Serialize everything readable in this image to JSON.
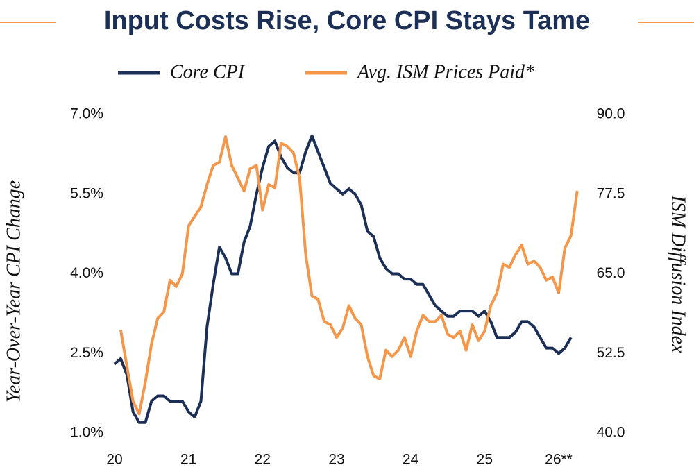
{
  "chart_data": {
    "type": "line",
    "title": "Input Costs Rise, Core CPI Stays Tame",
    "y_label": "Year-Over-Year CPI Change",
    "y2_label": "ISM Diffusion Index",
    "x": [
      20,
      20.083,
      20.167,
      20.25,
      20.333,
      20.417,
      20.5,
      20.583,
      20.667,
      20.75,
      20.833,
      20.917,
      21,
      21.083,
      21.167,
      21.25,
      21.333,
      21.417,
      21.5,
      21.583,
      21.667,
      21.75,
      21.833,
      21.917,
      22,
      22.083,
      22.167,
      22.25,
      22.333,
      22.417,
      22.5,
      22.583,
      22.667,
      22.75,
      22.833,
      22.917,
      23,
      23.083,
      23.167,
      23.25,
      23.333,
      23.417,
      23.5,
      23.583,
      23.667,
      23.75,
      23.833,
      23.917,
      24,
      24.083,
      24.167,
      24.25,
      24.333,
      24.417,
      24.5,
      24.583,
      24.667,
      24.75,
      24.833,
      24.917,
      25,
      25.083,
      25.167,
      25.25,
      25.333,
      25.417,
      25.5,
      25.583,
      25.667,
      25.75,
      25.833,
      25.917,
      26,
      26.083,
      26.167,
      26.25
    ],
    "series": [
      {
        "name": "Core CPI",
        "color": "#1b2f57",
        "axis": "y",
        "values": [
          2.3,
          2.4,
          2.1,
          1.4,
          1.2,
          1.2,
          1.6,
          1.7,
          1.7,
          1.6,
          1.6,
          1.6,
          1.4,
          1.3,
          1.6,
          3.0,
          3.8,
          4.5,
          4.3,
          4.0,
          4.0,
          4.6,
          4.9,
          5.5,
          6.0,
          6.4,
          6.5,
          6.2,
          6.0,
          5.9,
          5.9,
          6.3,
          6.6,
          6.3,
          6.0,
          5.7,
          5.6,
          5.5,
          5.6,
          5.5,
          5.3,
          4.8,
          4.7,
          4.3,
          4.1,
          4.0,
          4.0,
          3.9,
          3.9,
          3.8,
          3.8,
          3.6,
          3.4,
          3.3,
          3.2,
          3.2,
          3.3,
          3.3,
          3.3,
          3.2,
          3.3,
          3.1,
          2.8,
          2.8,
          2.8,
          2.9,
          3.1,
          3.1,
          3.0,
          2.8,
          2.6,
          2.6,
          2.5,
          2.6,
          2.8,
          null
        ]
      },
      {
        "name": "Avg. ISM Prices Paid*",
        "color": "#f4974a",
        "axis": "y2",
        "values": [
          null,
          56.2,
          50.5,
          45,
          43,
          48,
          54,
          58,
          59,
          64,
          63,
          65,
          72.5,
          74,
          75.5,
          79,
          82,
          82.5,
          86.5,
          82,
          80,
          78,
          81.5,
          82,
          75,
          79,
          78.5,
          85.5,
          85,
          84,
          80,
          68,
          61.5,
          61,
          57.5,
          57,
          55,
          56.5,
          60,
          58,
          57,
          52,
          49,
          48.5,
          53,
          52,
          53,
          55,
          52,
          56,
          58.5,
          57.5,
          57.5,
          58.5,
          55.5,
          55,
          56,
          53,
          57,
          54.5,
          56,
          60,
          62,
          66.5,
          66,
          68,
          69.5,
          66.5,
          67,
          66,
          64,
          64.5,
          62,
          69,
          71,
          78
        ]
      }
    ],
    "xlim": [
      20,
      26.3
    ],
    "xticks": [
      20,
      21,
      22,
      23,
      24,
      25,
      {
        "value": 26,
        "label": "26**"
      }
    ],
    "ylim": [
      1,
      7
    ],
    "yticks": [
      {
        "value": 1,
        "label": "1.0%"
      },
      {
        "value": 2.5,
        "label": "2.5%"
      },
      {
        "value": 4,
        "label": "4.0%"
      },
      {
        "value": 5.5,
        "label": "5.5%"
      },
      {
        "value": 7,
        "label": "7.0%"
      }
    ],
    "y2lim": [
      40,
      90
    ],
    "y2ticks": [
      {
        "value": 40,
        "label": "40.0"
      },
      {
        "value": 52.5,
        "label": "52.5"
      },
      {
        "value": 65,
        "label": "65.0"
      },
      {
        "value": 77.5,
        "label": "77.5"
      },
      {
        "value": 90,
        "label": "90.0"
      }
    ]
  }
}
